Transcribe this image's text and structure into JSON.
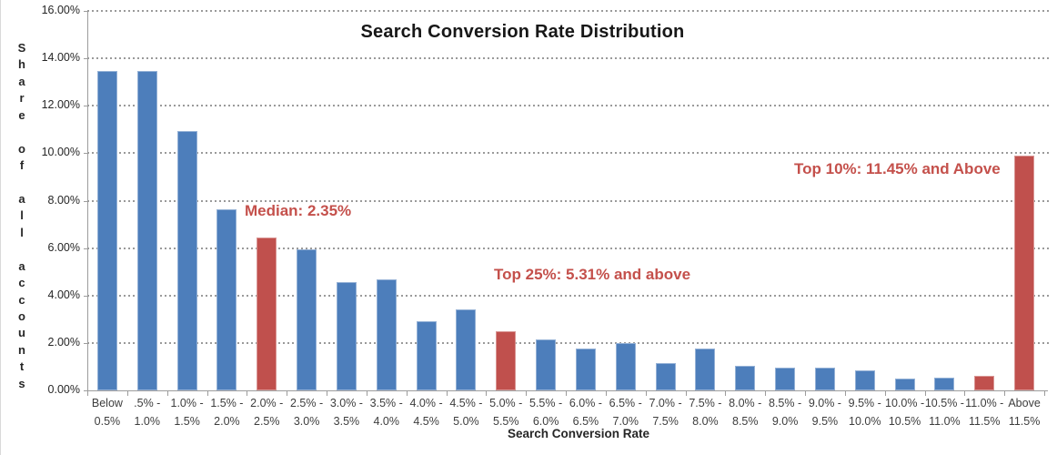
{
  "chart_data": {
    "type": "bar",
    "title": "Search Conversion Rate Distribution",
    "xlabel": "Search Conversion Rate",
    "ylabel": "Share of all accounts",
    "ylim": [
      0,
      16
    ],
    "ytick_step": 2,
    "ytick_labels": [
      "0.00%",
      "2.00%",
      "4.00%",
      "6.00%",
      "8.00%",
      "10.00%",
      "12.00%",
      "14.00%",
      "16.00%"
    ],
    "grid": "dotted-horizontal",
    "legend": "none",
    "categories": [
      [
        "Below",
        "0.5%"
      ],
      [
        ".5% -",
        "1.0%"
      ],
      [
        "1.0% -",
        "1.5%"
      ],
      [
        "1.5% -",
        "2.0%"
      ],
      [
        "2.0% -",
        "2.5%"
      ],
      [
        "2.5% -",
        "3.0%"
      ],
      [
        "3.0% -",
        "3.5%"
      ],
      [
        "3.5% -",
        "4.0%"
      ],
      [
        "4.0% -",
        "4.5%"
      ],
      [
        "4.5% -",
        "5.0%"
      ],
      [
        "5.0% -",
        "5.5%"
      ],
      [
        "5.5% -",
        "6.0%"
      ],
      [
        "6.0% -",
        "6.5%"
      ],
      [
        "6.5% -",
        "7.0%"
      ],
      [
        "7.0% -",
        "7.5%"
      ],
      [
        "7.5% -",
        "8.0%"
      ],
      [
        "8.0% -",
        "8.5%"
      ],
      [
        "8.5% -",
        "9.0%"
      ],
      [
        "9.0% -",
        "9.5%"
      ],
      [
        "9.5% -",
        "10.0%"
      ],
      [
        "10.0% -",
        "10.5%"
      ],
      [
        "10.5% -",
        "11.0%"
      ],
      [
        "11.0% -",
        "11.5%"
      ],
      [
        "Above",
        "11.5%"
      ]
    ],
    "values": [
      13.45,
      13.45,
      10.95,
      7.65,
      6.45,
      5.95,
      4.55,
      4.7,
      2.9,
      3.4,
      2.5,
      2.15,
      1.75,
      2.0,
      1.15,
      1.75,
      1.05,
      0.95,
      0.95,
      0.85,
      0.5,
      0.55,
      0.6,
      9.9
    ],
    "bar_color": "#4D7EBB",
    "highlight_color": "#C0504D",
    "highlighted_indices": [
      4,
      10,
      22,
      23
    ],
    "annotation_color": "#C4504B",
    "annotations": [
      {
        "text": "Median: 2.35%",
        "x": 268,
        "y": 222
      },
      {
        "text": "Top 25%: 5.31% and above",
        "x": 542,
        "y": 292
      },
      {
        "text": "Top 10%: 11.45% and Above",
        "x": 872,
        "y": 176
      }
    ]
  }
}
